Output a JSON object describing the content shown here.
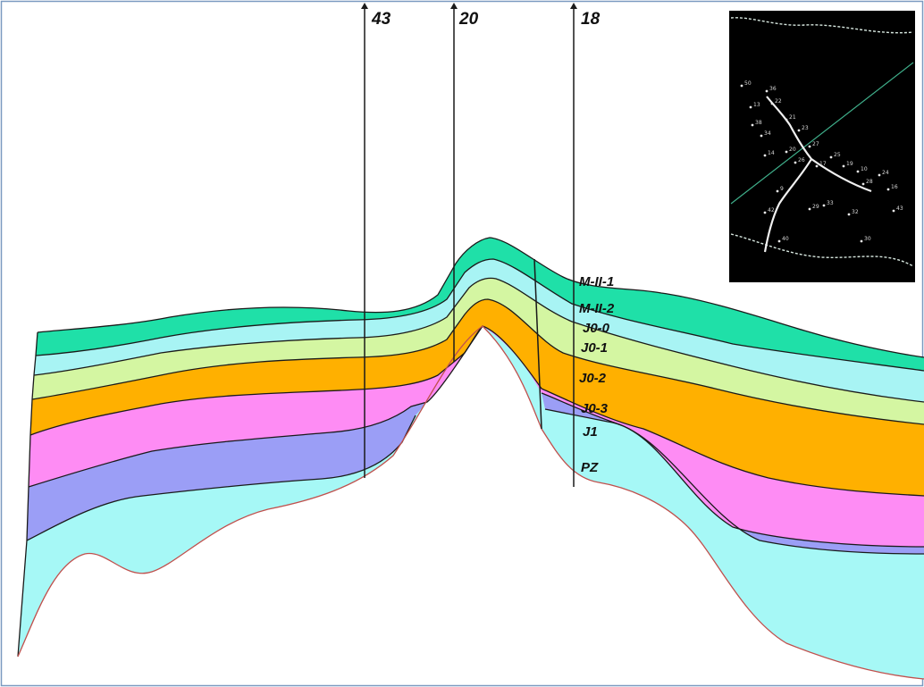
{
  "section": {
    "layers": [
      {
        "name": "M-II-1",
        "color": "#1fe0a8"
      },
      {
        "name": "M-II-2",
        "color": "#a8f4f4"
      },
      {
        "name": "J0-0",
        "color": "#d4f6a2"
      },
      {
        "name": "J0-1",
        "color": "#ffb000"
      },
      {
        "name": "J0-2",
        "color": "#fe8cf4"
      },
      {
        "name": "J0-3",
        "color": "#9b9ef6"
      },
      {
        "name": "J1",
        "color": "#a6f8f6"
      }
    ],
    "wells": [
      {
        "label": "43"
      },
      {
        "label": "20"
      },
      {
        "label": "18"
      }
    ],
    "layer_labels": [
      "M-II-1",
      "M-II-2",
      "J0-0",
      "J0-1",
      "J0-2",
      "J0-3",
      "J1",
      "PZ"
    ],
    "basement_line_color": "#c0504d",
    "contact_line_color": "#1a1a1a"
  },
  "inset_map": {
    "background": "#000000",
    "point_labels": [
      "50",
      "36",
      "13",
      "22",
      "38",
      "21",
      "34",
      "23",
      "14",
      "20",
      "27",
      "26",
      "25",
      "17",
      "19",
      "10",
      "24",
      "28",
      "16",
      "43",
      "40",
      "32",
      "30",
      "29",
      "33",
      "9",
      "42"
    ]
  }
}
